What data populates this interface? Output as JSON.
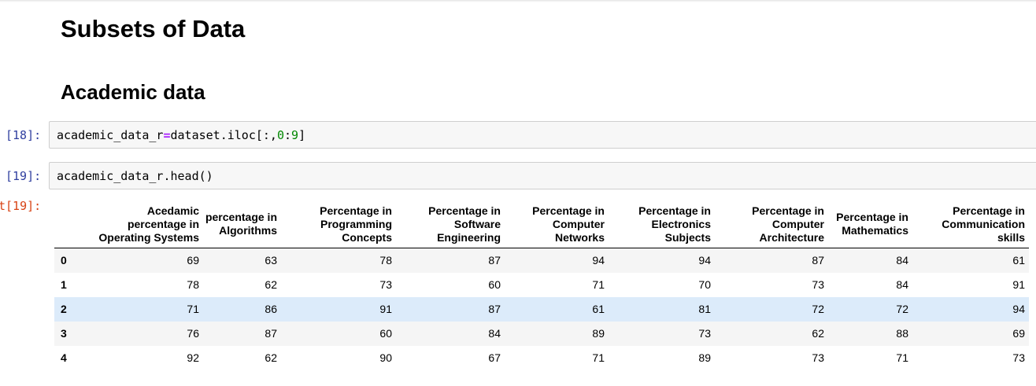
{
  "headings": {
    "title": "Subsets of Data",
    "subtitle": "Academic data"
  },
  "cells": [
    {
      "prompt": "[18]:",
      "code": {
        "var": "academic_data_r",
        "op": "=",
        "expr": "dataset.iloc[:,",
        "n1": "0",
        "colon": ":",
        "n2": "9",
        "close": "]"
      }
    },
    {
      "prompt": "[19]:",
      "code": "academic_data_r.head()"
    }
  ],
  "output": {
    "prompt": "t[19]:",
    "table": {
      "columns": [
        "Acedamic percentage in Operating Systems",
        "percentage in Algorithms",
        "Percentage in Programming Concepts",
        "Percentage in Software Engineering",
        "Percentage in Computer Networks",
        "Percentage in Electronics Subjects",
        "Percentage in Computer Architecture",
        "Percentage in Mathematics",
        "Percentage in Communication skills"
      ],
      "index": [
        "0",
        "1",
        "2",
        "3",
        "4"
      ],
      "rows": [
        [
          "69",
          "63",
          "78",
          "87",
          "94",
          "94",
          "87",
          "84",
          "61"
        ],
        [
          "78",
          "62",
          "73",
          "60",
          "71",
          "70",
          "73",
          "84",
          "91"
        ],
        [
          "71",
          "86",
          "91",
          "87",
          "61",
          "81",
          "72",
          "72",
          "94"
        ],
        [
          "76",
          "87",
          "60",
          "84",
          "89",
          "73",
          "62",
          "88",
          "69"
        ],
        [
          "92",
          "62",
          "90",
          "67",
          "71",
          "89",
          "73",
          "71",
          "73"
        ]
      ]
    }
  },
  "colors": {
    "prompt_in": "#303f9f",
    "prompt_out": "#d84315",
    "row_highlight": "#dcebfa",
    "row_stripe": "#f5f5f5"
  }
}
